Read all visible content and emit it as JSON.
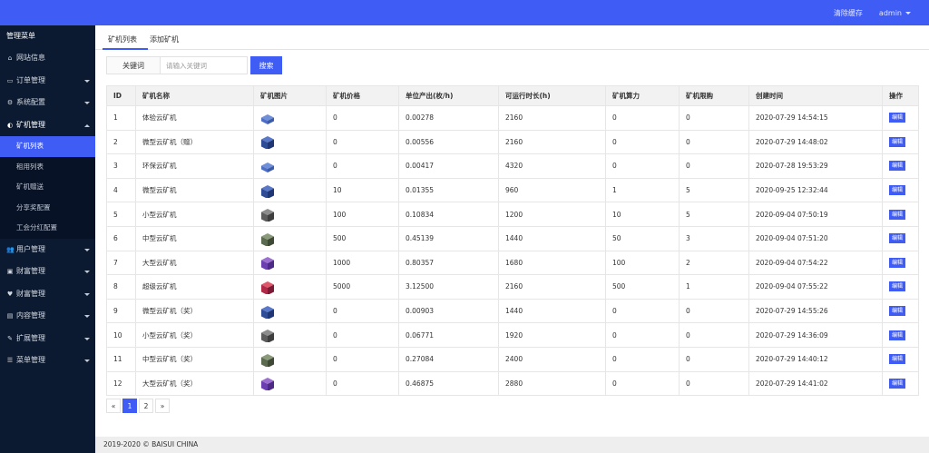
{
  "header": {
    "clear_cache": "清除缓存",
    "user": "admin"
  },
  "sidebar": {
    "title": "管理菜单",
    "items": [
      {
        "icon": "⌂",
        "icon_name": "home-icon",
        "label": "网站信息"
      },
      {
        "icon": "▭",
        "icon_name": "order-icon",
        "label": "订单管理"
      },
      {
        "icon": "⚙",
        "icon_name": "gears-icon",
        "label": "系统配置"
      },
      {
        "icon": "◐",
        "icon_name": "miner-icon",
        "label": "矿机管理"
      },
      {
        "icon": "👥",
        "icon_name": "users-icon",
        "label": "用户管理"
      },
      {
        "icon": "▣",
        "icon_name": "wallet-icon",
        "label": "财富管理"
      },
      {
        "icon": "♥",
        "icon_name": "heart-icon",
        "label": "财富管理"
      },
      {
        "icon": "▤",
        "icon_name": "content-icon",
        "label": "内容管理"
      },
      {
        "icon": "✎",
        "icon_name": "wrench-icon",
        "label": "扩展管理"
      },
      {
        "icon": "☰",
        "icon_name": "menu-icon",
        "label": "菜单管理"
      }
    ],
    "sub_items": [
      "矿机列表",
      "租用列表",
      "矿机赠送",
      "分享奖配置",
      "工会分红配置"
    ]
  },
  "tabs": [
    "矿机列表",
    "添加矿机"
  ],
  "search": {
    "label": "关键词",
    "placeholder": "请输入关键词",
    "button": "搜索"
  },
  "table": {
    "columns": [
      "ID",
      "矿机名称",
      "矿机图片",
      "矿机价格",
      "单位产出(枚/h)",
      "可运行时长(h)",
      "矿机算力",
      "矿机限购",
      "创建时间",
      "操作"
    ],
    "edit_label": "编辑",
    "rows": [
      {
        "id": "1",
        "name": "体验云矿机",
        "img": "blue-flat",
        "price": "0",
        "output": "0.00278",
        "hours": "2160",
        "power": "0",
        "limit": "0",
        "created": "2020-07-29 14:54:15"
      },
      {
        "id": "2",
        "name": "微型云矿机（赠）",
        "img": "blue-box",
        "price": "0",
        "output": "0.00556",
        "hours": "2160",
        "power": "0",
        "limit": "0",
        "created": "2020-07-29 14:48:02"
      },
      {
        "id": "3",
        "name": "环保云矿机",
        "img": "blue-flat",
        "price": "0",
        "output": "0.00417",
        "hours": "4320",
        "power": "0",
        "limit": "0",
        "created": "2020-07-28 19:53:29"
      },
      {
        "id": "4",
        "name": "微型云矿机",
        "img": "blue-box",
        "price": "10",
        "output": "0.01355",
        "hours": "960",
        "power": "1",
        "limit": "5",
        "created": "2020-09-25 12:32:44"
      },
      {
        "id": "5",
        "name": "小型云矿机",
        "img": "grey-box",
        "price": "100",
        "output": "0.10834",
        "hours": "1200",
        "power": "10",
        "limit": "5",
        "created": "2020-09-04 07:50:19"
      },
      {
        "id": "6",
        "name": "中型云矿机",
        "img": "green-box",
        "price": "500",
        "output": "0.45139",
        "hours": "1440",
        "power": "50",
        "limit": "3",
        "created": "2020-09-04 07:51:20"
      },
      {
        "id": "7",
        "name": "大型云矿机",
        "img": "purple-box",
        "price": "1000",
        "output": "0.80357",
        "hours": "1680",
        "power": "100",
        "limit": "2",
        "created": "2020-09-04 07:54:22"
      },
      {
        "id": "8",
        "name": "超级云矿机",
        "img": "red-box",
        "price": "5000",
        "output": "3.12500",
        "hours": "2160",
        "power": "500",
        "limit": "1",
        "created": "2020-09-04 07:55:22"
      },
      {
        "id": "9",
        "name": "微型云矿机（奖）",
        "img": "blue-box",
        "price": "0",
        "output": "0.00903",
        "hours": "1440",
        "power": "0",
        "limit": "0",
        "created": "2020-07-29 14:55:26"
      },
      {
        "id": "10",
        "name": "小型云矿机（奖）",
        "img": "grey-box",
        "price": "0",
        "output": "0.06771",
        "hours": "1920",
        "power": "0",
        "limit": "0",
        "created": "2020-07-29 14:36:09"
      },
      {
        "id": "11",
        "name": "中型云矿机（奖）",
        "img": "green-box",
        "price": "0",
        "output": "0.27084",
        "hours": "2400",
        "power": "0",
        "limit": "0",
        "created": "2020-07-29 14:40:12"
      },
      {
        "id": "12",
        "name": "大型云矿机（奖）",
        "img": "purple-box",
        "price": "0",
        "output": "0.46875",
        "hours": "2880",
        "power": "0",
        "limit": "0",
        "created": "2020-07-29 14:41:02"
      }
    ]
  },
  "pagination": {
    "prev": "«",
    "pages": [
      "1",
      "2"
    ],
    "current": "1",
    "next": "»"
  },
  "footer": "2019-2020 © BAISUI CHINA",
  "colors": {
    "primary": "#3f5cf5",
    "sidebar": "#0c1a31"
  }
}
